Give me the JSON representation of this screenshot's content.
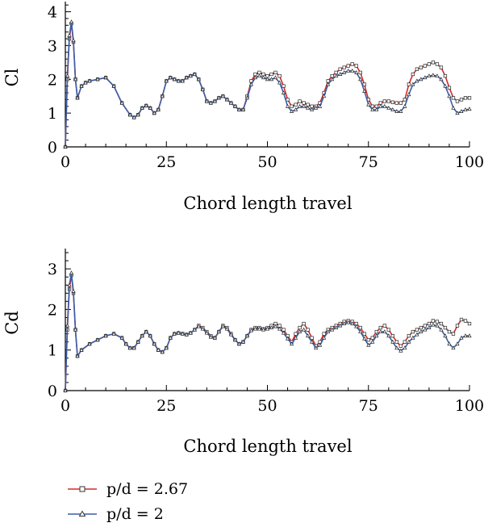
{
  "chart_data": [
    {
      "type": "line",
      "xlabel": "Chord length travel",
      "ylabel": "Cl",
      "xlim": [
        0,
        100
      ],
      "ylim": [
        0,
        4.3
      ],
      "xticks": [
        0,
        25,
        50,
        75,
        100
      ],
      "yticks": [
        0,
        1,
        2,
        3,
        4
      ],
      "grid": false,
      "series": [
        {
          "name": "p/d = 2.67",
          "color": "#d62a2a",
          "marker": "square",
          "x": [
            0,
            0.5,
            1,
            1.5,
            2,
            2.5,
            3,
            4,
            5,
            6,
            8,
            10,
            12,
            14,
            16,
            17,
            18,
            19,
            20,
            21,
            22,
            23,
            24,
            25,
            26,
            27,
            28,
            29,
            30,
            31,
            32,
            33,
            34,
            35,
            36,
            37,
            38,
            39,
            40,
            41,
            42,
            43,
            44,
            45,
            46,
            47,
            48,
            49,
            50,
            51,
            52,
            53,
            54,
            55,
            56,
            57,
            58,
            59,
            60,
            61,
            62,
            63,
            64,
            65,
            66,
            67,
            68,
            69,
            70,
            71,
            72,
            73,
            74,
            75,
            76,
            77,
            78,
            79,
            80,
            81,
            82,
            83,
            84,
            85,
            86,
            87,
            88,
            89,
            90,
            91,
            92,
            93,
            94,
            95,
            96,
            97,
            98,
            99,
            100
          ],
          "values": [
            0,
            2.0,
            3.2,
            3.65,
            3.1,
            2.0,
            1.45,
            1.8,
            1.9,
            1.95,
            2.0,
            2.05,
            1.8,
            1.3,
            0.95,
            0.87,
            0.95,
            1.15,
            1.22,
            1.15,
            1.0,
            1.1,
            1.5,
            1.95,
            2.05,
            2.0,
            1.95,
            1.95,
            2.05,
            2.1,
            2.15,
            2.0,
            1.7,
            1.35,
            1.3,
            1.35,
            1.45,
            1.5,
            1.4,
            1.3,
            1.2,
            1.1,
            1.1,
            1.5,
            1.95,
            2.15,
            2.2,
            2.15,
            2.1,
            2.15,
            2.2,
            2.1,
            1.8,
            1.4,
            1.2,
            1.25,
            1.35,
            1.3,
            1.25,
            1.2,
            1.2,
            1.3,
            1.6,
            1.95,
            2.1,
            2.2,
            2.3,
            2.35,
            2.4,
            2.45,
            2.4,
            2.2,
            1.85,
            1.4,
            1.2,
            1.2,
            1.3,
            1.35,
            1.35,
            1.32,
            1.3,
            1.3,
            1.4,
            1.85,
            2.15,
            2.3,
            2.35,
            2.4,
            2.45,
            2.5,
            2.45,
            2.35,
            2.1,
            1.75,
            1.45,
            1.35,
            1.4,
            1.45,
            1.45
          ]
        },
        {
          "name": "p/d = 2",
          "color": "#3a5fa8",
          "marker": "triangle",
          "x": [
            0,
            0.5,
            1,
            1.5,
            2,
            2.5,
            3,
            4,
            5,
            6,
            8,
            10,
            12,
            14,
            16,
            17,
            18,
            19,
            20,
            21,
            22,
            23,
            24,
            25,
            26,
            27,
            28,
            29,
            30,
            31,
            32,
            33,
            34,
            35,
            36,
            37,
            38,
            39,
            40,
            41,
            42,
            43,
            44,
            45,
            46,
            47,
            48,
            49,
            50,
            51,
            52,
            53,
            54,
            55,
            56,
            57,
            58,
            59,
            60,
            61,
            62,
            63,
            64,
            65,
            66,
            67,
            68,
            69,
            70,
            71,
            72,
            73,
            74,
            75,
            76,
            77,
            78,
            79,
            80,
            81,
            82,
            83,
            84,
            85,
            86,
            87,
            88,
            89,
            90,
            91,
            92,
            93,
            94,
            95,
            96,
            97,
            98,
            99,
            100
          ],
          "values": [
            0,
            2.1,
            3.3,
            3.7,
            3.15,
            2.0,
            1.45,
            1.8,
            1.9,
            1.95,
            2.0,
            2.05,
            1.8,
            1.3,
            0.95,
            0.87,
            0.95,
            1.15,
            1.22,
            1.15,
            1.0,
            1.1,
            1.5,
            1.95,
            2.05,
            2.0,
            1.95,
            1.95,
            2.05,
            2.1,
            2.15,
            2.0,
            1.7,
            1.35,
            1.3,
            1.35,
            1.45,
            1.5,
            1.4,
            1.3,
            1.2,
            1.1,
            1.1,
            1.45,
            1.85,
            2.05,
            2.1,
            2.05,
            2.0,
            2.0,
            2.05,
            1.9,
            1.6,
            1.2,
            1.05,
            1.1,
            1.2,
            1.2,
            1.15,
            1.1,
            1.15,
            1.2,
            1.5,
            1.85,
            2.0,
            2.1,
            2.15,
            2.2,
            2.25,
            2.25,
            2.2,
            2.0,
            1.65,
            1.25,
            1.1,
            1.1,
            1.2,
            1.2,
            1.15,
            1.1,
            1.05,
            1.05,
            1.2,
            1.55,
            1.85,
            1.95,
            2.0,
            2.05,
            2.1,
            2.12,
            2.1,
            2.0,
            1.8,
            1.5,
            1.15,
            1.0,
            1.05,
            1.1,
            1.12
          ]
        }
      ]
    },
    {
      "type": "line",
      "xlabel": "Chord length travel",
      "ylabel": "Cd",
      "xlim": [
        0,
        100
      ],
      "ylim": [
        0,
        3.5
      ],
      "xticks": [
        0,
        25,
        50,
        75,
        100
      ],
      "yticks": [
        0,
        1,
        2,
        3
      ],
      "grid": false,
      "series": [
        {
          "name": "p/d = 2.67",
          "color": "#d62a2a",
          "marker": "square",
          "x": [
            0,
            0.5,
            1,
            1.5,
            2,
            2.5,
            3,
            4,
            6,
            8,
            10,
            12,
            14,
            15,
            16,
            17,
            18,
            19,
            20,
            21,
            22,
            23,
            24,
            25,
            26,
            27,
            28,
            29,
            30,
            31,
            32,
            33,
            34,
            35,
            36,
            37,
            38,
            39,
            40,
            41,
            42,
            43,
            44,
            45,
            46,
            47,
            48,
            49,
            50,
            51,
            52,
            53,
            54,
            55,
            56,
            57,
            58,
            59,
            60,
            61,
            62,
            63,
            64,
            65,
            66,
            67,
            68,
            69,
            70,
            71,
            72,
            73,
            74,
            75,
            76,
            77,
            78,
            79,
            80,
            81,
            82,
            83,
            84,
            85,
            86,
            87,
            88,
            89,
            90,
            91,
            92,
            93,
            94,
            95,
            96,
            97,
            98,
            99,
            100
          ],
          "values": [
            0,
            1.5,
            2.5,
            2.85,
            2.4,
            1.5,
            0.85,
            1.0,
            1.15,
            1.25,
            1.35,
            1.4,
            1.3,
            1.15,
            1.05,
            1.05,
            1.2,
            1.35,
            1.45,
            1.35,
            1.15,
            1.0,
            0.95,
            1.05,
            1.3,
            1.4,
            1.42,
            1.4,
            1.38,
            1.42,
            1.5,
            1.6,
            1.55,
            1.45,
            1.35,
            1.3,
            1.45,
            1.6,
            1.55,
            1.4,
            1.25,
            1.15,
            1.2,
            1.35,
            1.5,
            1.55,
            1.55,
            1.52,
            1.55,
            1.6,
            1.65,
            1.6,
            1.5,
            1.35,
            1.2,
            1.4,
            1.55,
            1.65,
            1.5,
            1.3,
            1.1,
            1.2,
            1.4,
            1.5,
            1.55,
            1.6,
            1.65,
            1.7,
            1.72,
            1.7,
            1.65,
            1.55,
            1.4,
            1.25,
            1.3,
            1.45,
            1.55,
            1.6,
            1.5,
            1.35,
            1.2,
            1.1,
            1.2,
            1.35,
            1.45,
            1.5,
            1.55,
            1.6,
            1.65,
            1.72,
            1.7,
            1.65,
            1.55,
            1.45,
            1.4,
            1.6,
            1.75,
            1.72,
            1.65
          ]
        },
        {
          "name": "p/d = 2",
          "color": "#3a5fa8",
          "marker": "triangle",
          "x": [
            0,
            0.5,
            1,
            1.5,
            2,
            2.5,
            3,
            4,
            6,
            8,
            10,
            12,
            14,
            15,
            16,
            17,
            18,
            19,
            20,
            21,
            22,
            23,
            24,
            25,
            26,
            27,
            28,
            29,
            30,
            31,
            32,
            33,
            34,
            35,
            36,
            37,
            38,
            39,
            40,
            41,
            42,
            43,
            44,
            45,
            46,
            47,
            48,
            49,
            50,
            51,
            52,
            53,
            54,
            55,
            56,
            57,
            58,
            59,
            60,
            61,
            62,
            63,
            64,
            65,
            66,
            67,
            68,
            69,
            70,
            71,
            72,
            73,
            74,
            75,
            76,
            77,
            78,
            79,
            80,
            81,
            82,
            83,
            84,
            85,
            86,
            87,
            88,
            89,
            90,
            91,
            92,
            93,
            94,
            95,
            96,
            97,
            98,
            99,
            100
          ],
          "values": [
            0,
            1.6,
            2.6,
            2.9,
            2.45,
            1.5,
            0.85,
            1.0,
            1.15,
            1.25,
            1.35,
            1.4,
            1.3,
            1.15,
            1.05,
            1.05,
            1.2,
            1.35,
            1.45,
            1.35,
            1.15,
            1.0,
            0.95,
            1.05,
            1.3,
            1.4,
            1.42,
            1.4,
            1.38,
            1.42,
            1.5,
            1.58,
            1.52,
            1.42,
            1.32,
            1.3,
            1.45,
            1.58,
            1.52,
            1.38,
            1.25,
            1.15,
            1.2,
            1.35,
            1.48,
            1.52,
            1.52,
            1.5,
            1.52,
            1.55,
            1.58,
            1.52,
            1.42,
            1.28,
            1.15,
            1.3,
            1.45,
            1.5,
            1.35,
            1.2,
            1.05,
            1.12,
            1.3,
            1.45,
            1.5,
            1.55,
            1.6,
            1.65,
            1.68,
            1.65,
            1.58,
            1.45,
            1.28,
            1.12,
            1.2,
            1.35,
            1.45,
            1.45,
            1.35,
            1.2,
            1.05,
            0.98,
            1.05,
            1.2,
            1.3,
            1.38,
            1.45,
            1.5,
            1.55,
            1.62,
            1.6,
            1.5,
            1.35,
            1.15,
            1.05,
            1.15,
            1.3,
            1.35,
            1.35
          ]
        }
      ]
    }
  ],
  "legend": {
    "items": [
      {
        "label": "p/d = 2.67",
        "color": "#d62a2a",
        "marker": "square"
      },
      {
        "label": "p/d = 2",
        "color": "#3a5fa8",
        "marker": "triangle"
      }
    ]
  }
}
